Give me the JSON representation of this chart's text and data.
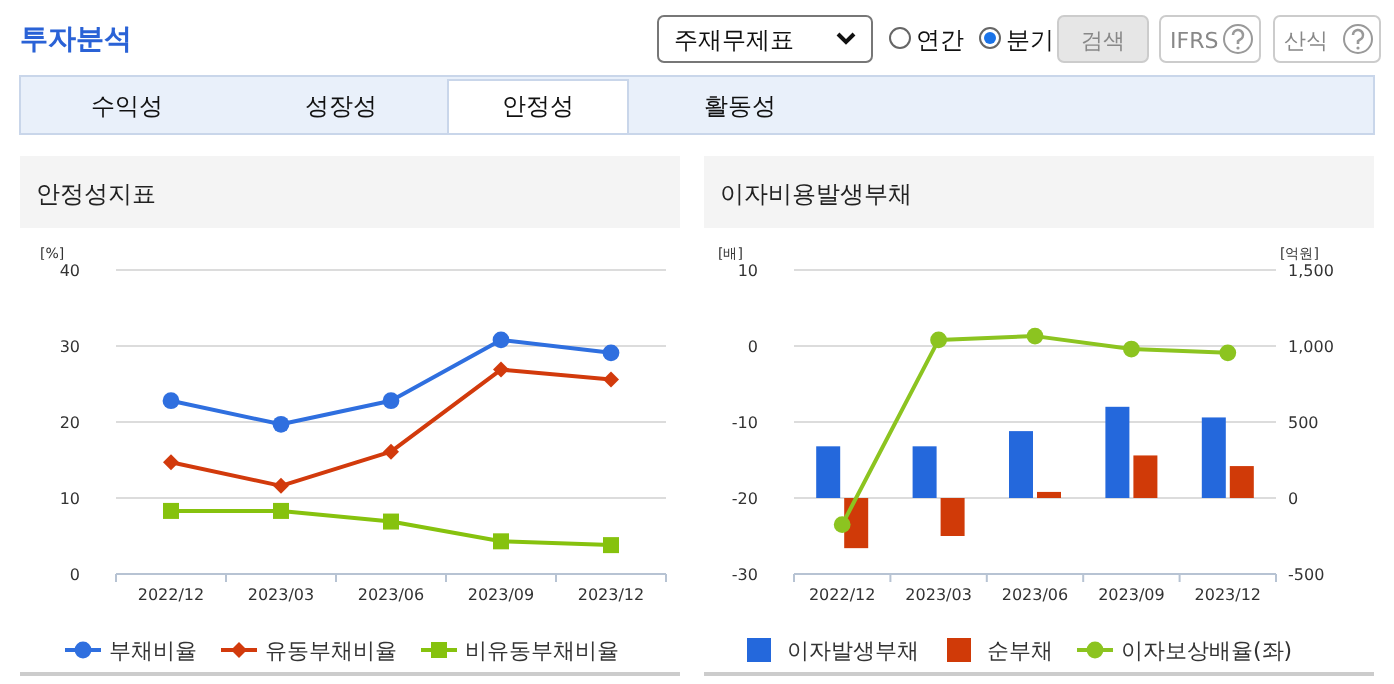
{
  "chart_data": [
    {
      "type": "other",
      "title": "투자분석",
      "annotations": [
        "주재무제표",
        "연간",
        "분기",
        "검색",
        "IFRS",
        "산식",
        "수익성",
        "성장성",
        "안정성",
        "활동성"
      ]
    },
    {
      "type": "line",
      "title": "안정성지표",
      "ylabel": "[%]",
      "categories": [
        "2022/12",
        "2023/03",
        "2023/06",
        "2023/09",
        "2023/12"
      ],
      "ylim": [
        0,
        40
      ],
      "yticks": [
        0,
        10,
        20,
        30,
        40
      ],
      "grid": "y",
      "legend": "bottom",
      "series": [
        {
          "name": "부채비율",
          "color": "#2f6fdf",
          "marker": "circle",
          "values": [
            22.8,
            19.7,
            22.8,
            30.8,
            29.1
          ]
        },
        {
          "name": "유동부채비율",
          "color": "#d23a0c",
          "marker": "diamond",
          "values": [
            14.7,
            11.6,
            16.1,
            26.9,
            25.6
          ]
        },
        {
          "name": "비유동부채비율",
          "color": "#86c20e",
          "marker": "square",
          "values": [
            8.3,
            8.3,
            6.9,
            4.3,
            3.8
          ]
        }
      ]
    },
    {
      "type": "bar",
      "title": "이자비용발생부채",
      "ylabel": "[배]",
      "y2label": "[억원]",
      "categories": [
        "2022/12",
        "2023/03",
        "2023/06",
        "2023/09",
        "2023/12"
      ],
      "ylim": [
        -30,
        10
      ],
      "yticks": [
        -30,
        -20,
        -10,
        0,
        10
      ],
      "y2lim": [
        -500,
        1500
      ],
      "y2ticks": [
        -500,
        0,
        500,
        {
          "value": 1000,
          "label": "1,000"
        },
        {
          "value": 1500,
          "label": "1,500"
        }
      ],
      "grid": "y",
      "legend": "bottom",
      "series": [
        {
          "name": "이자발생부채",
          "color": "#2468dc",
          "axis": "y2",
          "values": [
            340,
            340,
            440,
            600,
            530
          ]
        },
        {
          "name": "순부채",
          "color": "#d03a08",
          "axis": "y2",
          "values": [
            -330,
            -250,
            40,
            280,
            210
          ]
        },
        {
          "name": "이자보상배율(좌)",
          "type": "line",
          "color": "#8cc420",
          "marker": "circle",
          "values": [
            -23.5,
            0.8,
            1.3,
            -0.4,
            -0.9
          ]
        }
      ]
    }
  ]
}
